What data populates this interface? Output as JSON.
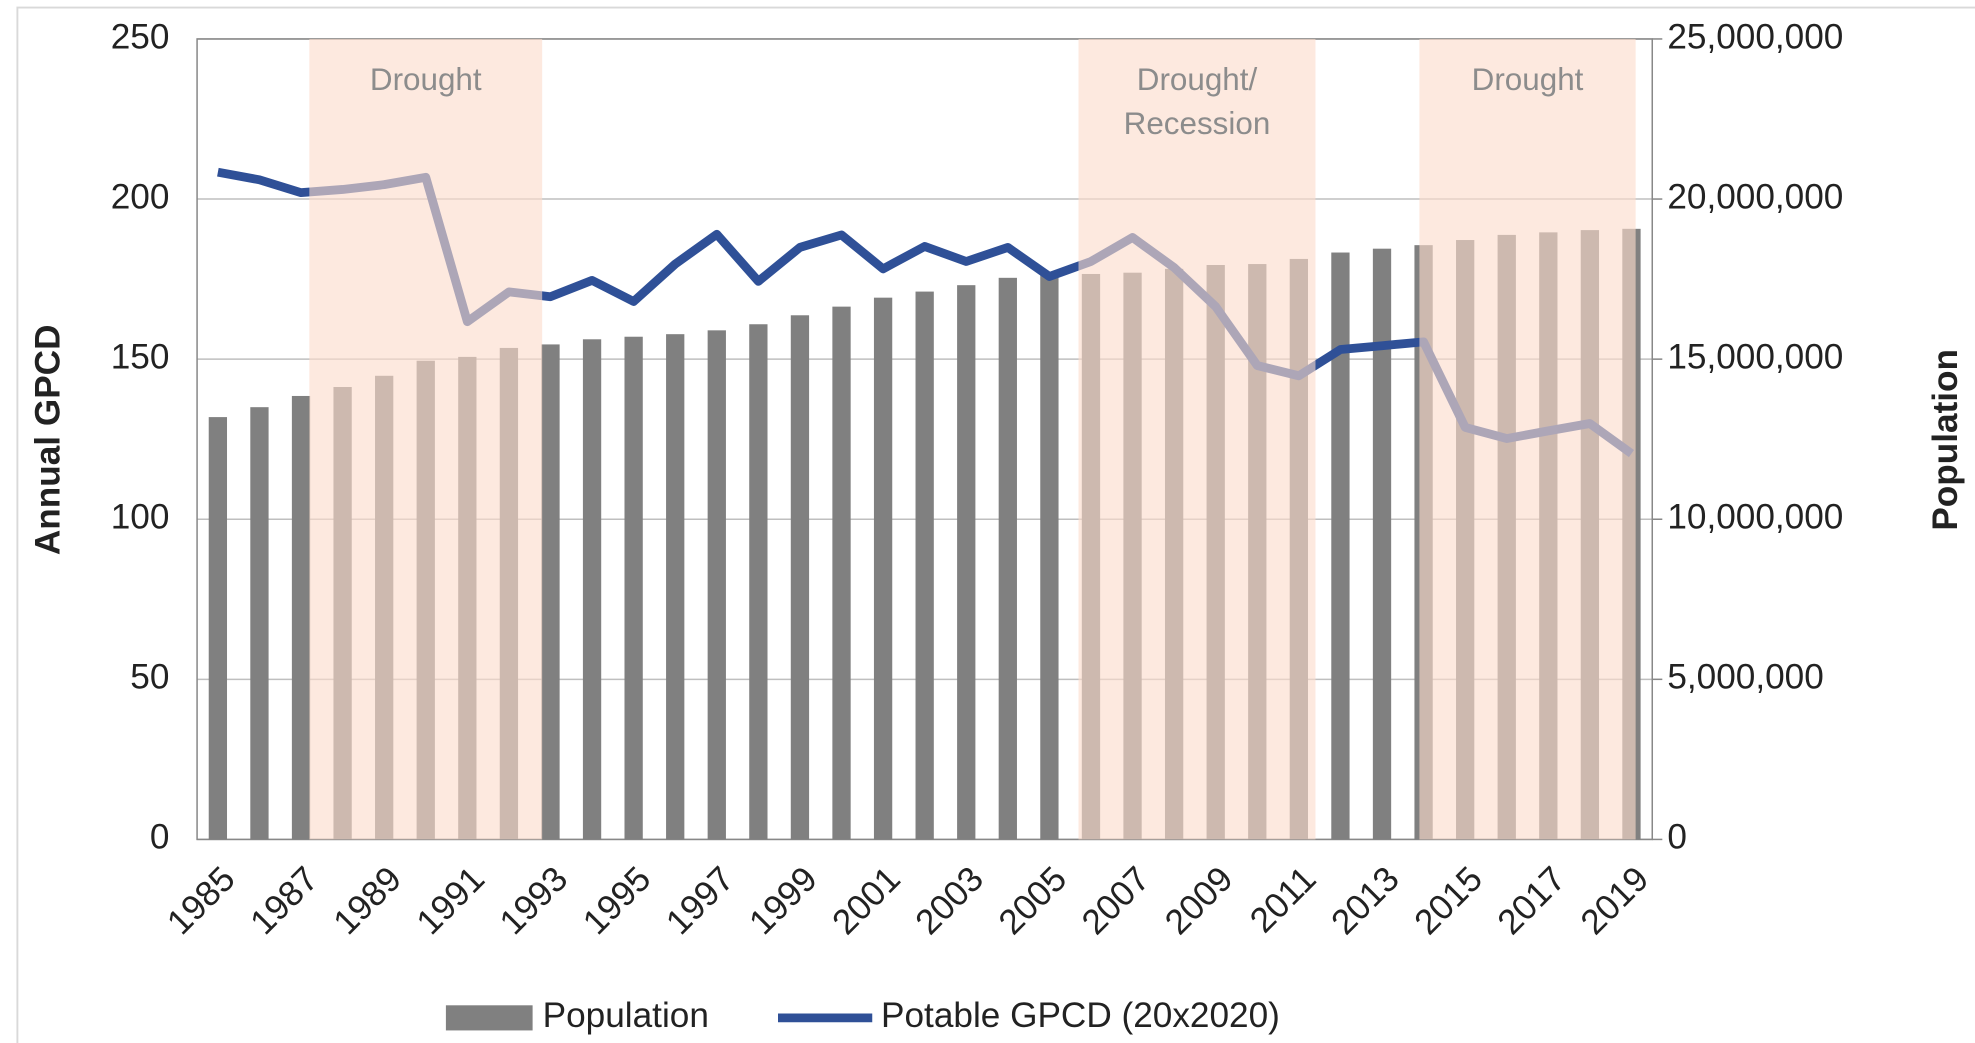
{
  "chart_data": {
    "type": "combo",
    "categories": [
      "1985",
      null,
      "1987",
      null,
      "1989",
      null,
      "1991",
      null,
      "1993",
      null,
      "1995",
      null,
      "1997",
      null,
      "1999",
      null,
      "2001",
      null,
      "2003",
      null,
      "2005",
      null,
      "2007",
      null,
      "2009",
      null,
      "2011",
      null,
      "2013",
      null,
      "2015",
      null,
      "2017",
      null,
      "2019"
    ],
    "series": [
      {
        "name": "Population",
        "type": "bar",
        "axis": "y2",
        "color": "#808080",
        "values": [
          13190000,
          13500000,
          13850000,
          14130000,
          14480000,
          14950000,
          15070000,
          15350000,
          15460000,
          15620000,
          15700000,
          15780000,
          15900000,
          16090000,
          16370000,
          16640000,
          16920000,
          17110000,
          17310000,
          17540000,
          17660000,
          17660000,
          17700000,
          17820000,
          17940000,
          17970000,
          18130000,
          18330000,
          18450000,
          18560000,
          18720000,
          18880000,
          18960000,
          19030000,
          19070000
        ]
      },
      {
        "name": "Potable GPCD (20x2020)",
        "type": "line",
        "axis": "y",
        "color": "#2f5097",
        "values": [
          208.4,
          206,
          202,
          203,
          204.5,
          206.8,
          161.7,
          171,
          169.5,
          174.6,
          168,
          179.7,
          189,
          174.3,
          184.9,
          188.8,
          178.2,
          185.2,
          180.5,
          184.9,
          175.8,
          180.5,
          188,
          178.6,
          166.4,
          148,
          144.8,
          153,
          154.2,
          155.4,
          128.7,
          125.2,
          127.6,
          129.9,
          120.5
        ]
      }
    ],
    "y_label": "Annual GPCD",
    "y2_label": "Population",
    "ylim": [
      0,
      250
    ],
    "yticks": [
      0,
      50,
      100,
      150,
      200,
      250
    ],
    "y2lim": [
      0,
      25000000
    ],
    "y2ticks": [
      0,
      {
        "value": 5000000,
        "label": "5,000,000"
      },
      {
        "value": 10000000,
        "label": "10,000,000"
      },
      {
        "value": 15000000,
        "label": "15,000,000"
      },
      {
        "value": 20000000,
        "label": "20,000,000"
      },
      {
        "value": 25000000,
        "label": "25,000,000"
      }
    ],
    "grid": true,
    "legend": "bottom",
    "shaded_periods": [
      {
        "label": [
          "Drought"
        ],
        "from": 1987.2,
        "to": 1992.8,
        "color": "#fbdccb"
      },
      {
        "label": [
          "Drought/",
          "Recession"
        ],
        "from": 2005.7,
        "to": 2011.4,
        "color": "#fbdccb"
      },
      {
        "label": [
          "Drought"
        ],
        "from": 2013.9,
        "to": 2019.1,
        "color": "#fbdccb"
      }
    ]
  }
}
